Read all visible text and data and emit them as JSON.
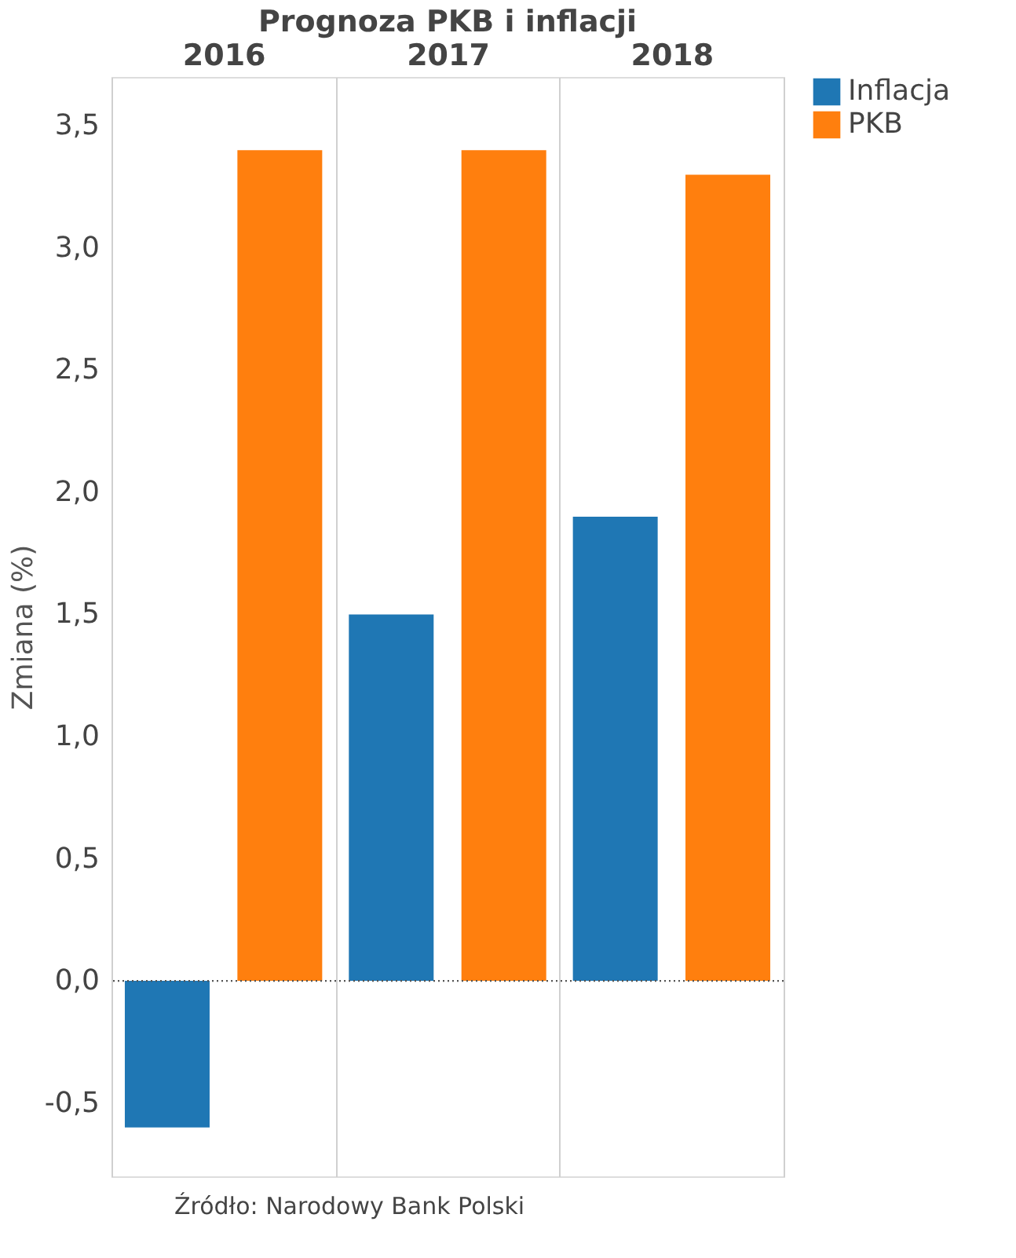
{
  "chart_data": {
    "type": "bar",
    "title": "Prognoza PKB i inflacji",
    "ylabel": "Zmiana (%)",
    "categories": [
      "2016",
      "2017",
      "2018"
    ],
    "series": [
      {
        "name": "Inflacja",
        "color": "#1f77b4",
        "values": [
          -0.6,
          1.5,
          1.9
        ]
      },
      {
        "name": "PKB",
        "color": "#ff7f0e",
        "values": [
          3.4,
          3.4,
          3.3
        ]
      }
    ],
    "ylim": [
      -0.8,
      3.7
    ],
    "yticks": [
      {
        "value": -0.5,
        "label": "-0,5"
      },
      {
        "value": 0,
        "label": "0,0"
      },
      {
        "value": 0.5,
        "label": "0,5"
      },
      {
        "value": 1,
        "label": "1,0"
      },
      {
        "value": 1.5,
        "label": "1,5"
      },
      {
        "value": 2,
        "label": "2,0"
      },
      {
        "value": 2.5,
        "label": "2,5"
      },
      {
        "value": 3,
        "label": "3,0"
      },
      {
        "value": 3.5,
        "label": "3,5"
      }
    ],
    "ref_lines": [
      {
        "axis": "y",
        "value": 0,
        "color": "#555555",
        "line_style": "dotted"
      }
    ],
    "grid": "x",
    "legend": "top right",
    "annotations": [
      "Źródło: Narodowy Bank Polski"
    ]
  }
}
